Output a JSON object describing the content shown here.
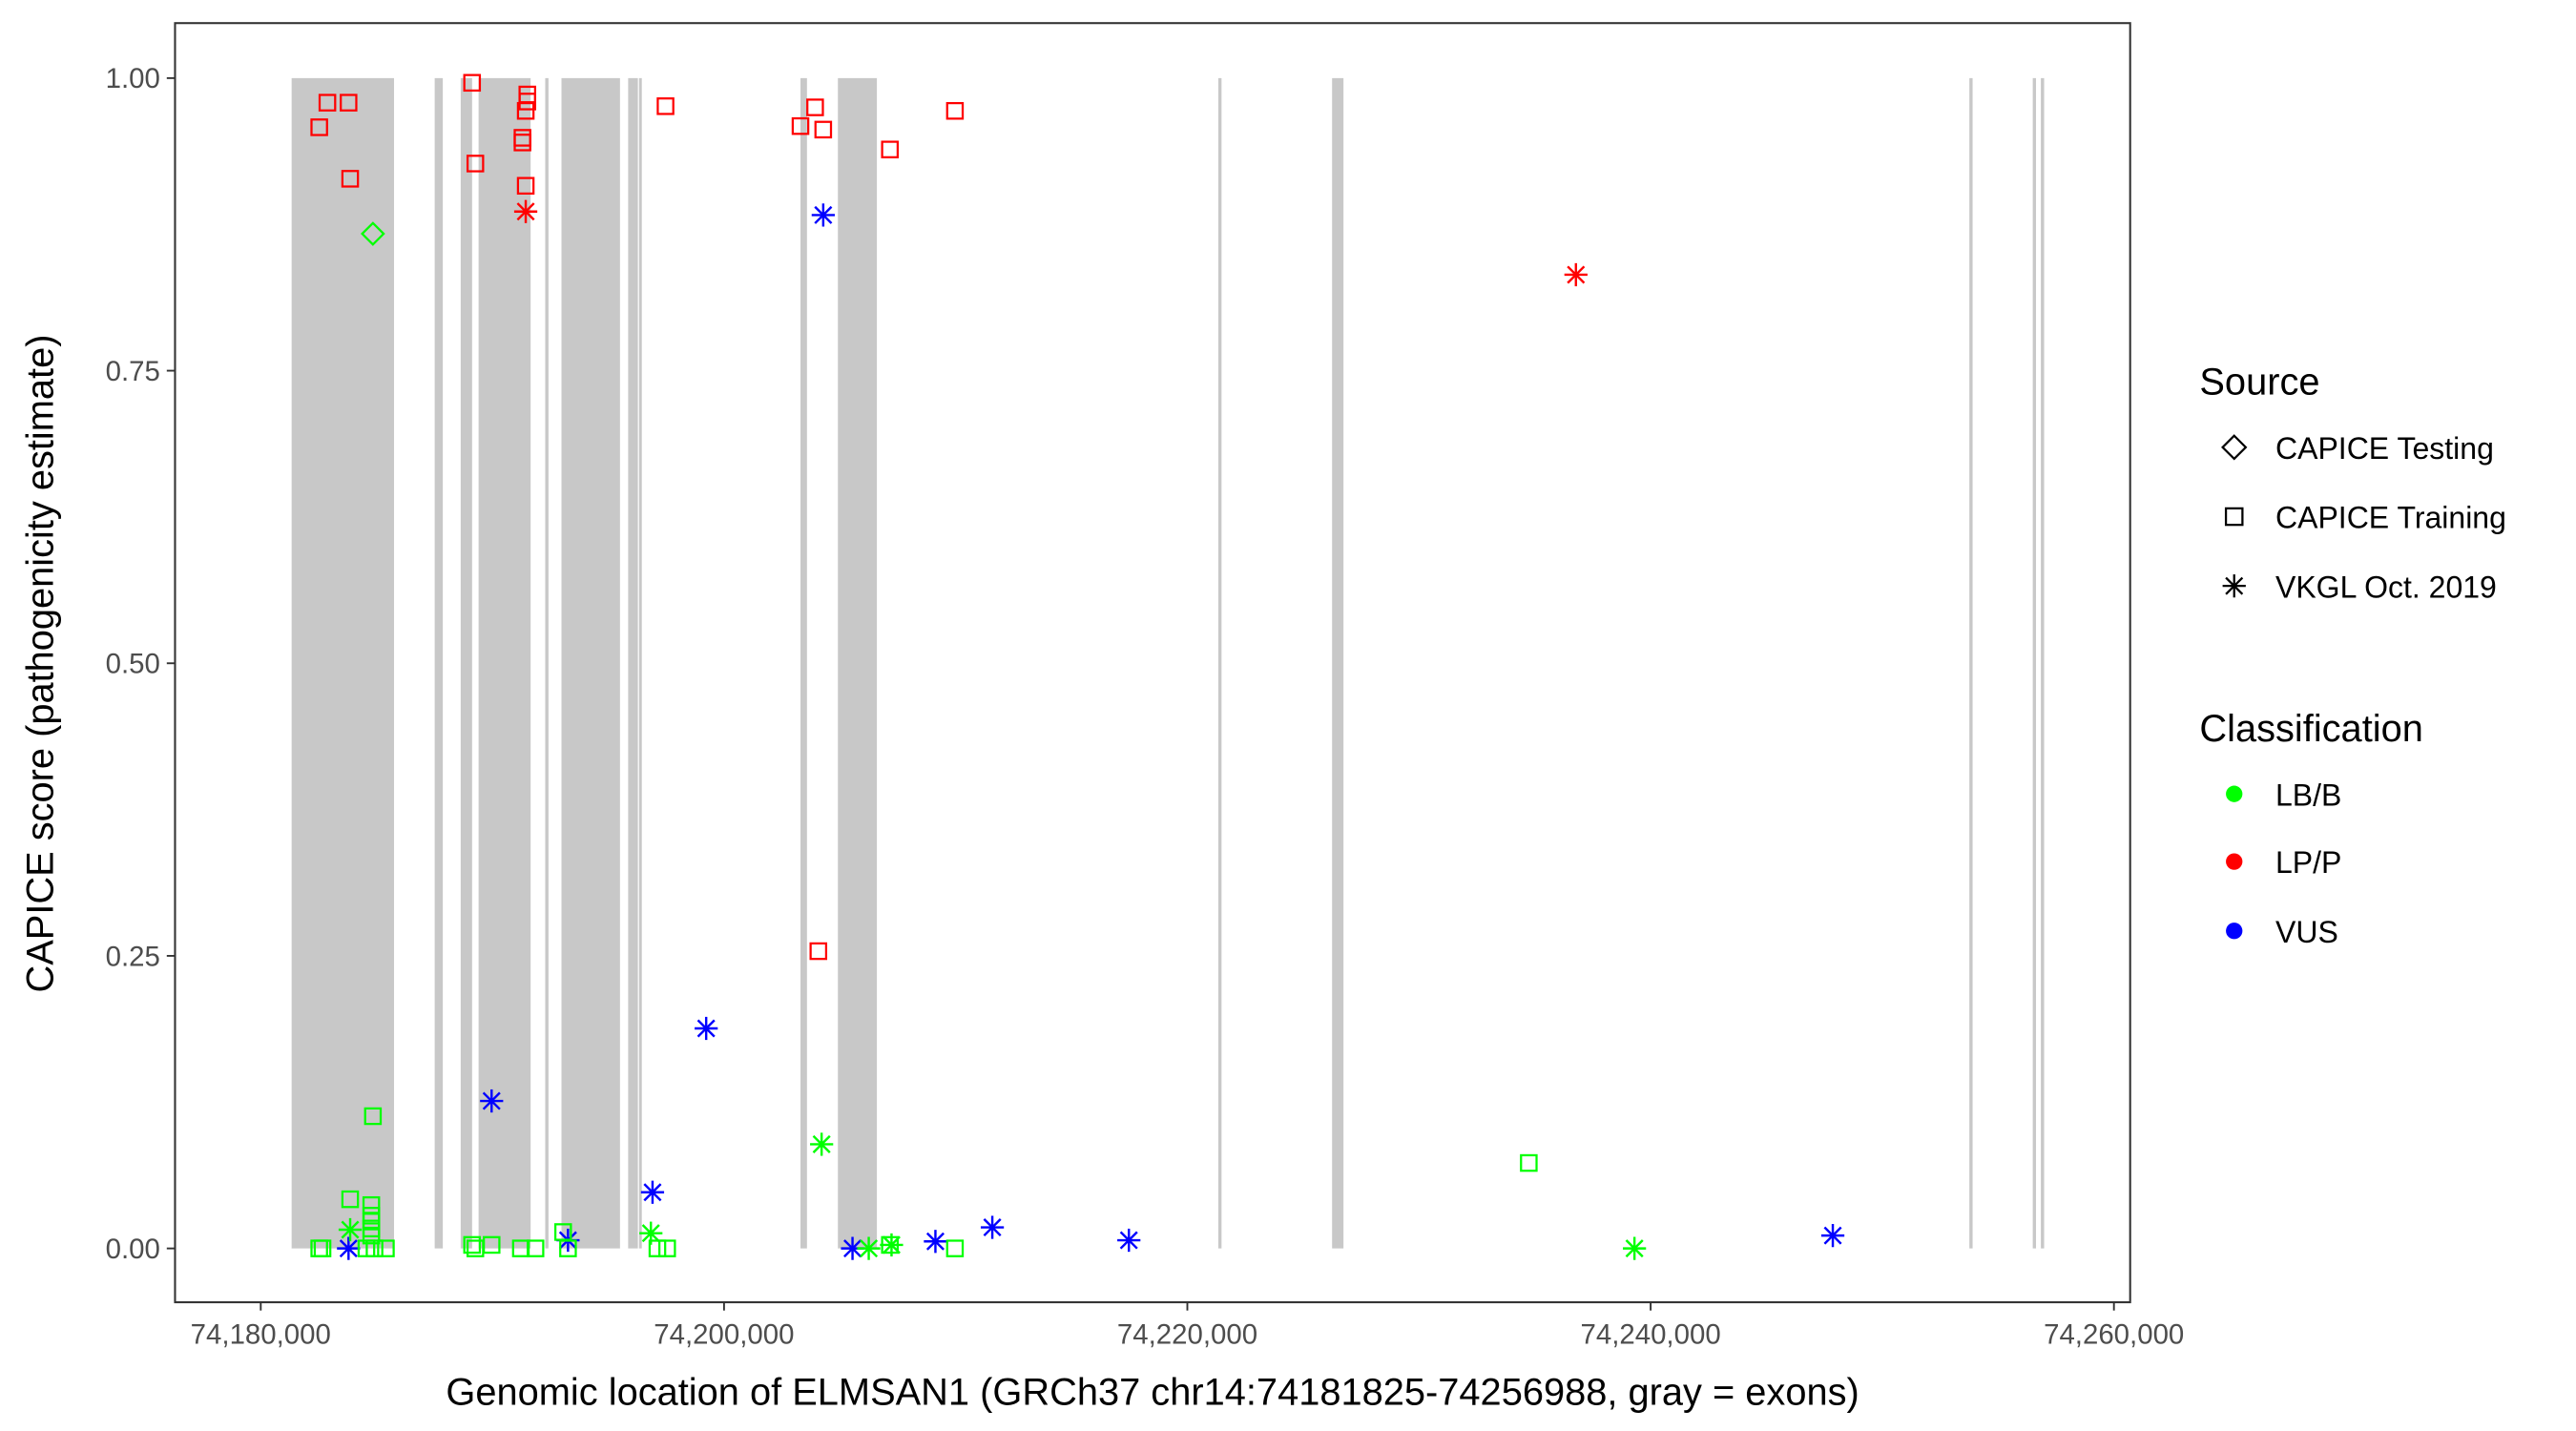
{
  "chart_data": {
    "type": "scatter",
    "xlabel": "Genomic location of ELMSAN1 (GRCh37 chr14:74181825-74256988, gray = exons)",
    "ylabel": "CAPICE score (pathogenicity estimate)",
    "xlim": [
      74176300,
      74260700
    ],
    "ylim": [
      -0.046,
      1.047
    ],
    "x_ticks": [
      74180000,
      74200000,
      74220000,
      74240000,
      74260000
    ],
    "x_tick_labels": [
      "74,180,000",
      "74,200,000",
      "74,220,000",
      "74,240,000",
      "74,260,000"
    ],
    "y_ticks": [
      0,
      0.25,
      0.5,
      0.75,
      1.0
    ],
    "y_tick_labels": [
      "0.00",
      "0.25",
      "0.50",
      "0.75",
      "1.00"
    ],
    "grid": false,
    "exon_color": "#C8C8C8",
    "exons": [
      [
        74181333,
        74185754
      ],
      [
        74187509,
        74187860
      ],
      [
        74188632,
        74189123
      ],
      [
        74189404,
        74191650
      ],
      [
        74192281,
        74192421
      ],
      [
        74192983,
        74195509
      ],
      [
        74195860,
        74196281
      ],
      [
        74196330,
        74196450
      ],
      [
        74203300,
        74203580
      ],
      [
        74204914,
        74206598
      ],
      [
        74221336,
        74221476
      ],
      [
        74226248,
        74226740
      ],
      [
        74253759,
        74253899
      ],
      [
        74256496,
        74256636
      ],
      [
        74256846,
        74256986
      ]
    ],
    "legend_placement": "right",
    "legends": [
      {
        "title": "Source",
        "entries": [
          {
            "label": "CAPICE Testing",
            "shape": "diamond"
          },
          {
            "label": "CAPICE Training",
            "shape": "square"
          },
          {
            "label": "VKGL Oct. 2019",
            "shape": "asterisk"
          }
        ]
      },
      {
        "title": "Classification",
        "entries": [
          {
            "label": "LB/B",
            "color": "#00FF00"
          },
          {
            "label": "LP/P",
            "color": "#FF0000"
          },
          {
            "label": "VUS",
            "color": "#0000FF"
          }
        ]
      }
    ],
    "points": [
      {
        "x": 74182526,
        "y": 0.958,
        "source": "CAPICE Training",
        "class": "LP/P"
      },
      {
        "x": 74182877,
        "y": 0.979,
        "source": "CAPICE Training",
        "class": "LP/P"
      },
      {
        "x": 74183790,
        "y": 0.979,
        "source": "CAPICE Training",
        "class": "LP/P"
      },
      {
        "x": 74183860,
        "y": 0.914,
        "source": "CAPICE Training",
        "class": "LP/P"
      },
      {
        "x": 74189123,
        "y": 0.996,
        "source": "CAPICE Training",
        "class": "LP/P"
      },
      {
        "x": 74189264,
        "y": 0.927,
        "source": "CAPICE Training",
        "class": "LP/P"
      },
      {
        "x": 74191299,
        "y": 0.945,
        "source": "CAPICE Training",
        "class": "LP/P"
      },
      {
        "x": 74191299,
        "y": 0.949,
        "source": "CAPICE Training",
        "class": "LP/P"
      },
      {
        "x": 74191439,
        "y": 0.908,
        "source": "CAPICE Training",
        "class": "LP/P"
      },
      {
        "x": 74191439,
        "y": 0.972,
        "source": "CAPICE Training",
        "class": "LP/P"
      },
      {
        "x": 74191509,
        "y": 0.98,
        "source": "CAPICE Training",
        "class": "LP/P"
      },
      {
        "x": 74191509,
        "y": 0.986,
        "source": "CAPICE Training",
        "class": "LP/P"
      },
      {
        "x": 74197474,
        "y": 0.976,
        "source": "CAPICE Training",
        "class": "LP/P"
      },
      {
        "x": 74203300,
        "y": 0.959,
        "source": "CAPICE Training",
        "class": "LP/P"
      },
      {
        "x": 74203931,
        "y": 0.975,
        "source": "CAPICE Training",
        "class": "LP/P"
      },
      {
        "x": 74204282,
        "y": 0.956,
        "source": "CAPICE Training",
        "class": "LP/P"
      },
      {
        "x": 74204072,
        "y": 0.254,
        "source": "CAPICE Training",
        "class": "LP/P"
      },
      {
        "x": 74207160,
        "y": 0.939,
        "source": "CAPICE Training",
        "class": "LP/P"
      },
      {
        "x": 74209967,
        "y": 0.972,
        "source": "CAPICE Training",
        "class": "LP/P"
      },
      {
        "x": 74191439,
        "y": 0.886,
        "source": "VKGL Oct. 2019",
        "class": "LP/P"
      },
      {
        "x": 74236775,
        "y": 0.832,
        "source": "VKGL Oct. 2019",
        "class": "LP/P"
      },
      {
        "x": 74184842,
        "y": 0.867,
        "source": "CAPICE Testing",
        "class": "LB/B"
      },
      {
        "x": 74189966,
        "y": 0.126,
        "source": "VKGL Oct. 2019",
        "class": "VUS"
      },
      {
        "x": 74199229,
        "y": 0.188,
        "source": "VKGL Oct. 2019",
        "class": "VUS"
      },
      {
        "x": 74196913,
        "y": 0.048,
        "source": "VKGL Oct. 2019",
        "class": "VUS"
      },
      {
        "x": 74204282,
        "y": 0.883,
        "source": "VKGL Oct. 2019",
        "class": "VUS"
      },
      {
        "x": 74183790,
        "y": 0.0,
        "source": "VKGL Oct. 2019",
        "class": "VUS"
      },
      {
        "x": 74193264,
        "y": 0.007,
        "source": "VKGL Oct. 2019",
        "class": "VUS"
      },
      {
        "x": 74205546,
        "y": 0.0,
        "source": "VKGL Oct. 2019",
        "class": "VUS"
      },
      {
        "x": 74209125,
        "y": 0.006,
        "source": "VKGL Oct. 2019",
        "class": "VUS"
      },
      {
        "x": 74211581,
        "y": 0.018,
        "source": "VKGL Oct. 2019",
        "class": "VUS"
      },
      {
        "x": 74217476,
        "y": 0.007,
        "source": "VKGL Oct. 2019",
        "class": "VUS"
      },
      {
        "x": 74247864,
        "y": 0.011,
        "source": "VKGL Oct. 2019",
        "class": "VUS"
      },
      {
        "x": 74204212,
        "y": 0.089,
        "source": "VKGL Oct. 2019",
        "class": "LB/B"
      },
      {
        "x": 74183860,
        "y": 0.016,
        "source": "VKGL Oct. 2019",
        "class": "LB/B"
      },
      {
        "x": 74196842,
        "y": 0.013,
        "source": "VKGL Oct. 2019",
        "class": "LB/B"
      },
      {
        "x": 74206247,
        "y": 0.0,
        "source": "VKGL Oct. 2019",
        "class": "LB/B"
      },
      {
        "x": 74207230,
        "y": 0.003,
        "source": "VKGL Oct. 2019",
        "class": "LB/B"
      },
      {
        "x": 74239302,
        "y": 0.0,
        "source": "VKGL Oct. 2019",
        "class": "LB/B"
      },
      {
        "x": 74184842,
        "y": 0.113,
        "source": "CAPICE Training",
        "class": "LB/B"
      },
      {
        "x": 74183860,
        "y": 0.042,
        "source": "CAPICE Training",
        "class": "LB/B"
      },
      {
        "x": 74184772,
        "y": 0.037,
        "source": "CAPICE Training",
        "class": "LB/B"
      },
      {
        "x": 74184772,
        "y": 0.028,
        "source": "CAPICE Training",
        "class": "LB/B"
      },
      {
        "x": 74184772,
        "y": 0.023,
        "source": "CAPICE Training",
        "class": "LB/B"
      },
      {
        "x": 74184772,
        "y": 0.017,
        "source": "CAPICE Training",
        "class": "LB/B"
      },
      {
        "x": 74184772,
        "y": 0.011,
        "source": "CAPICE Training",
        "class": "LB/B"
      },
      {
        "x": 74182526,
        "y": 0.0,
        "source": "CAPICE Training",
        "class": "LB/B"
      },
      {
        "x": 74182667,
        "y": 0.0,
        "source": "CAPICE Training",
        "class": "LB/B"
      },
      {
        "x": 74184561,
        "y": 0.0,
        "source": "CAPICE Training",
        "class": "LB/B"
      },
      {
        "x": 74184912,
        "y": 0.0,
        "source": "CAPICE Training",
        "class": "LB/B"
      },
      {
        "x": 74185403,
        "y": 0.0,
        "source": "CAPICE Training",
        "class": "LB/B"
      },
      {
        "x": 74189123,
        "y": 0.003,
        "source": "CAPICE Training",
        "class": "LB/B"
      },
      {
        "x": 74189264,
        "y": 0.0,
        "source": "CAPICE Training",
        "class": "LB/B"
      },
      {
        "x": 74189966,
        "y": 0.003,
        "source": "CAPICE Training",
        "class": "LB/B"
      },
      {
        "x": 74191229,
        "y": 0.0,
        "source": "CAPICE Training",
        "class": "LB/B"
      },
      {
        "x": 74191860,
        "y": 0.0,
        "source": "CAPICE Training",
        "class": "LB/B"
      },
      {
        "x": 74193054,
        "y": 0.014,
        "source": "CAPICE Training",
        "class": "LB/B"
      },
      {
        "x": 74193264,
        "y": 0.0,
        "source": "CAPICE Training",
        "class": "LB/B"
      },
      {
        "x": 74197123,
        "y": 0.0,
        "source": "CAPICE Training",
        "class": "LB/B"
      },
      {
        "x": 74197544,
        "y": 0.0,
        "source": "CAPICE Training",
        "class": "LB/B"
      },
      {
        "x": 74207160,
        "y": 0.003,
        "source": "CAPICE Training",
        "class": "LB/B"
      },
      {
        "x": 74209967,
        "y": 0.0,
        "source": "CAPICE Training",
        "class": "LB/B"
      },
      {
        "x": 74234740,
        "y": 0.073,
        "source": "CAPICE Training",
        "class": "LB/B"
      }
    ]
  }
}
